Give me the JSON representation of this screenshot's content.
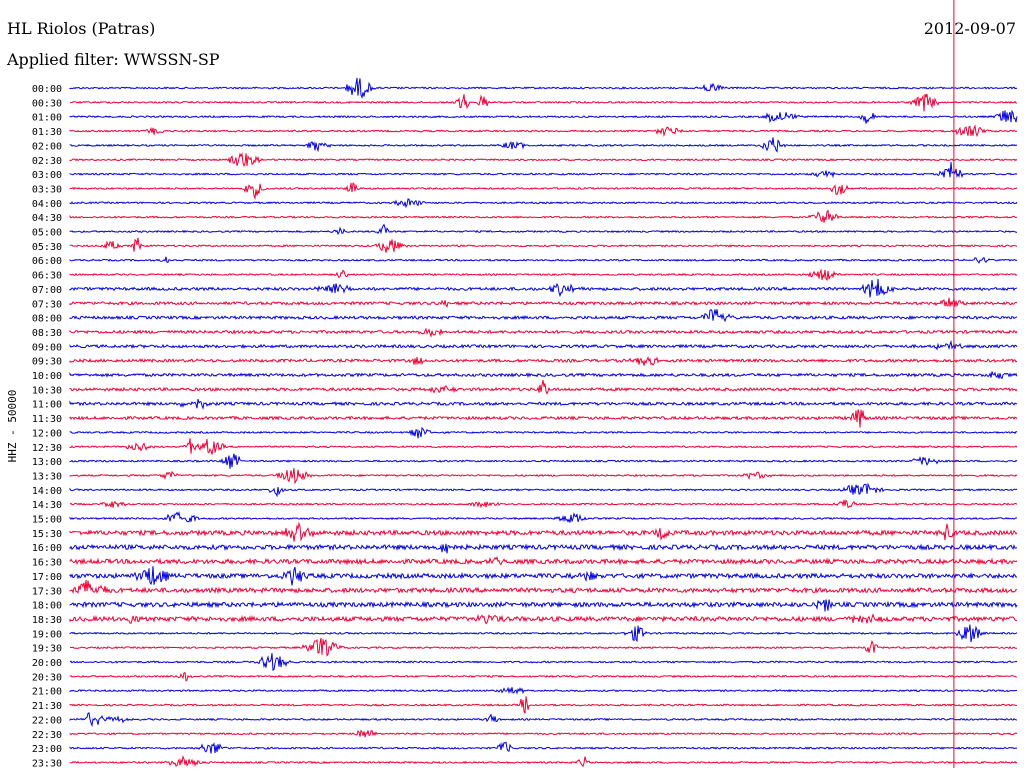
{
  "header": {
    "station": "HL Riolos (Patras)",
    "date": "2012-09-07",
    "filter": "Applied filter: WWSSN-SP"
  },
  "chart_data": {
    "type": "line",
    "ylabel": "HHZ - 50000",
    "rows": [
      "00:00",
      "00:30",
      "01:00",
      "01:30",
      "02:00",
      "02:30",
      "03:00",
      "03:30",
      "04:00",
      "04:30",
      "05:00",
      "05:30",
      "06:00",
      "06:30",
      "07:00",
      "07:30",
      "08:00",
      "08:30",
      "09:00",
      "09:30",
      "10:00",
      "10:30",
      "11:00",
      "11:30",
      "12:00",
      "12:30",
      "13:00",
      "13:30",
      "14:00",
      "14:30",
      "15:00",
      "15:30",
      "16:00",
      "16:30",
      "17:00",
      "17:30",
      "18:00",
      "18:30",
      "19:00",
      "19:30",
      "20:00",
      "20:30",
      "21:00",
      "21:30",
      "22:00",
      "22:30",
      "23:00",
      "23:30"
    ],
    "trace_colors": [
      "#0000dd",
      "#ee0033"
    ],
    "marker_color": "#ee0033",
    "marker_time_minutes": 28
  }
}
